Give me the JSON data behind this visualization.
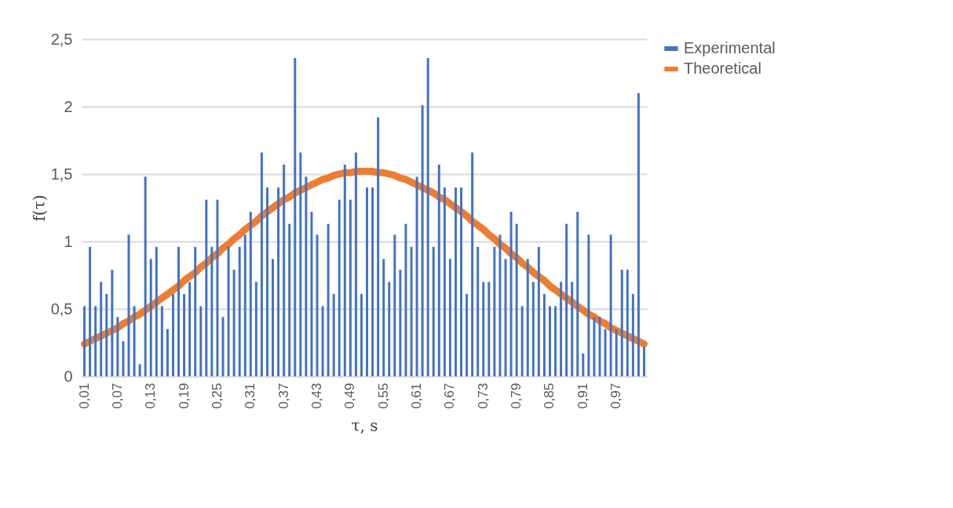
{
  "chart_data": {
    "type": "bar",
    "xlabel": "τ, s",
    "ylabel": "f(τ)",
    "categories": [
      "0,01",
      null,
      null,
      null,
      null,
      null,
      "0,07",
      null,
      null,
      null,
      null,
      null,
      "0,13",
      null,
      null,
      null,
      null,
      null,
      "0,19",
      null,
      null,
      null,
      null,
      null,
      "0,25",
      null,
      null,
      null,
      null,
      null,
      "0,31",
      null,
      null,
      null,
      null,
      null,
      "0,37",
      null,
      null,
      null,
      null,
      null,
      "0,43",
      null,
      null,
      null,
      null,
      null,
      "0,49",
      null,
      null,
      null,
      null,
      null,
      "0,55",
      null,
      null,
      null,
      null,
      null,
      "0,61",
      null,
      null,
      null,
      null,
      null,
      "0,67",
      null,
      null,
      null,
      null,
      null,
      "0,73",
      null,
      null,
      null,
      null,
      null,
      "0,79",
      null,
      null,
      null,
      null,
      null,
      "0,85",
      null,
      null,
      null,
      null,
      null,
      "0,91",
      null,
      null,
      null,
      null,
      null,
      "0,97",
      null,
      null,
      null,
      null,
      null
    ],
    "series": [
      {
        "name": "Experimental",
        "color": "#4472c4",
        "values": [
          0.52,
          0.96,
          0.52,
          0.7,
          0.61,
          0.79,
          0.44,
          0.26,
          1.05,
          0.52,
          0.09,
          1.48,
          0.87,
          0.96,
          0.52,
          0.35,
          0.61,
          0.96,
          0.61,
          0.7,
          0.96,
          0.52,
          1.31,
          0.96,
          1.31,
          0.44,
          0.96,
          0.79,
          0.96,
          1.05,
          1.22,
          0.7,
          1.66,
          1.4,
          0.87,
          1.4,
          1.57,
          1.13,
          2.36,
          1.66,
          1.48,
          1.22,
          1.05,
          0.52,
          1.13,
          0.61,
          1.31,
          1.57,
          1.31,
          1.66,
          0.61,
          1.4,
          1.4,
          1.92,
          0.87,
          0.7,
          1.05,
          0.79,
          1.13,
          0.96,
          1.48,
          2.01,
          2.36,
          0.96,
          1.57,
          1.4,
          0.87,
          1.4,
          1.4,
          0.61,
          1.66,
          0.96,
          0.7,
          0.7,
          0.96,
          1.05,
          0.87,
          1.22,
          1.13,
          0.52,
          0.87,
          0.7,
          0.96,
          0.61,
          0.52,
          0.52,
          0.7,
          1.13,
          0.7,
          1.22,
          0.17,
          1.05,
          0.44,
          0.44,
          0.35,
          1.05,
          0.35,
          0.79,
          0.79,
          0.61,
          2.1,
          0.22
        ]
      },
      {
        "name": "Theoretical",
        "type": "line",
        "color": "#ed7d31",
        "values": [
          0.24,
          0.26,
          0.28,
          0.3,
          0.32,
          0.34,
          0.36,
          0.39,
          0.41,
          0.44,
          0.46,
          0.49,
          0.52,
          0.55,
          0.58,
          0.61,
          0.64,
          0.67,
          0.71,
          0.74,
          0.77,
          0.81,
          0.84,
          0.88,
          0.91,
          0.95,
          0.98,
          1.02,
          1.05,
          1.09,
          1.12,
          1.15,
          1.19,
          1.22,
          1.25,
          1.28,
          1.31,
          1.33,
          1.36,
          1.38,
          1.4,
          1.42,
          1.44,
          1.46,
          1.47,
          1.49,
          1.5,
          1.51,
          1.51,
          1.52,
          1.52,
          1.52,
          1.52,
          1.51,
          1.51,
          1.5,
          1.49,
          1.47,
          1.46,
          1.44,
          1.42,
          1.4,
          1.38,
          1.36,
          1.33,
          1.31,
          1.28,
          1.25,
          1.22,
          1.19,
          1.15,
          1.12,
          1.09,
          1.05,
          1.02,
          0.98,
          0.95,
          0.91,
          0.88,
          0.84,
          0.81,
          0.77,
          0.74,
          0.71,
          0.67,
          0.64,
          0.61,
          0.58,
          0.55,
          0.52,
          0.49,
          0.46,
          0.44,
          0.41,
          0.39,
          0.36,
          0.34,
          0.32,
          0.3,
          0.28,
          0.26,
          0.24
        ]
      }
    ],
    "ylim": [
      0,
      2.5
    ],
    "yticks": [
      0,
      {
        "value": 0.5,
        "label": "0,5"
      },
      1,
      {
        "value": 1.5,
        "label": "1,5"
      },
      2,
      {
        "value": 2.5,
        "label": "2,5"
      }
    ],
    "grid": "y",
    "legend": "right"
  }
}
